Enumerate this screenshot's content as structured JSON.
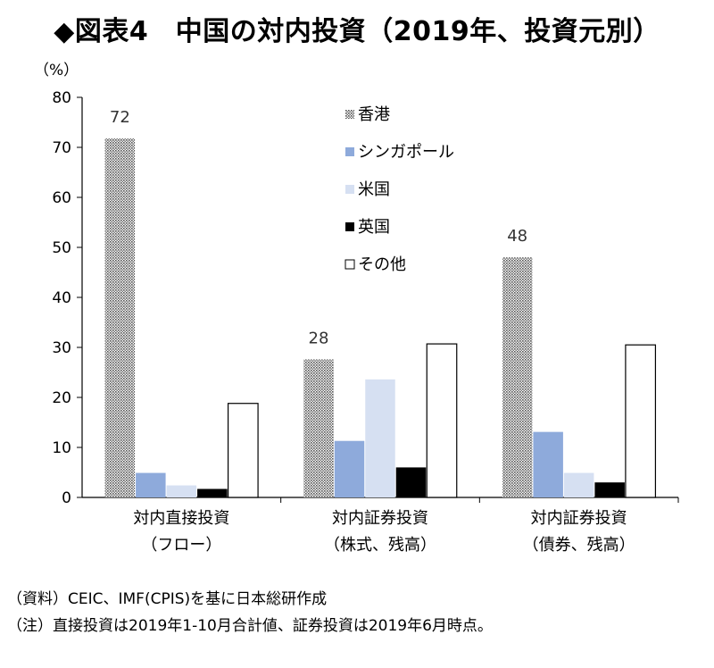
{
  "title": "◆図表4　中国の対内投資（2019年、投資元別）",
  "notes": {
    "source": "（資料）CEIC、IMF(CPIS)を基に日本総研作成",
    "note": "（注）直接投資は2019年1-10月合計値、証券投資は2019年6月時点。"
  },
  "chart_data": {
    "type": "bar",
    "unit_label": "（%）",
    "ylim": [
      0,
      80
    ],
    "yticks": [
      0,
      10,
      20,
      30,
      40,
      50,
      60,
      70,
      80
    ],
    "grid": false,
    "legend_position": "top-center",
    "categories": [
      [
        "対内直接投資",
        "（フロー）"
      ],
      [
        "対内証券投資",
        "（株式、残高）"
      ],
      [
        "対内証券投資",
        "（債券、残高）"
      ]
    ],
    "series": [
      {
        "name": "香港",
        "values": [
          71.8,
          27.6,
          48.0
        ],
        "color": "#bdbdbd",
        "pattern": "dots"
      },
      {
        "name": "シンガポール",
        "values": [
          4.9,
          11.3,
          13.1
        ],
        "color": "#8eaadb"
      },
      {
        "name": "米国",
        "values": [
          2.4,
          23.6,
          4.9
        ],
        "color": "#d6e0f2"
      },
      {
        "name": "英国",
        "values": [
          1.7,
          6.0,
          3.0
        ],
        "color": "#000000"
      },
      {
        "name": "その他",
        "values": [
          18.8,
          30.7,
          30.5
        ],
        "color": "#ffffff"
      }
    ],
    "data_labels": [
      {
        "series": 0,
        "category": 0,
        "text": "72"
      },
      {
        "series": 0,
        "category": 1,
        "text": "28"
      },
      {
        "series": 0,
        "category": 2,
        "text": "48"
      }
    ]
  }
}
